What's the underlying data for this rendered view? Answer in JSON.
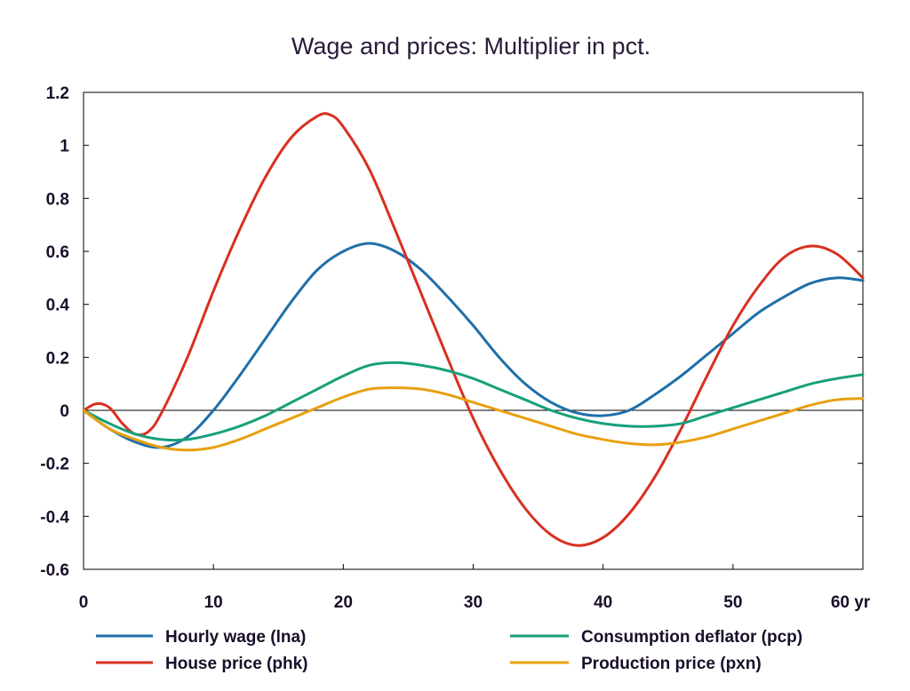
{
  "chart_data": {
    "type": "line",
    "title": "Wage and prices: Multiplier in pct.",
    "xlabel": "",
    "ylabel": "",
    "x_unit_label": "yr",
    "xlim": [
      0,
      60
    ],
    "ylim": [
      -0.6,
      1.2
    ],
    "x_ticks": [
      0,
      10,
      20,
      30,
      40,
      50,
      60
    ],
    "x_tick_labels": [
      "0",
      "10",
      "20",
      "30",
      "40",
      "50",
      "60 yr"
    ],
    "y_ticks": [
      -0.6,
      -0.4,
      -0.2,
      0,
      0.2,
      0.4,
      0.6,
      0.8,
      1,
      1.2
    ],
    "y_tick_labels": [
      "-0.6",
      "-0.4",
      "-0.2",
      "0",
      "0.2",
      "0.4",
      "0.6",
      "0.8",
      "1",
      "1.2"
    ],
    "grid": false,
    "legend_position": "bottom",
    "series": [
      {
        "name": "Hourly wage (lna)",
        "color": "#1f6fa8",
        "points": [
          [
            0,
            0
          ],
          [
            2,
            -0.07
          ],
          [
            4,
            -0.12
          ],
          [
            6,
            -0.14
          ],
          [
            8,
            -0.1
          ],
          [
            10,
            0.0
          ],
          [
            12,
            0.13
          ],
          [
            14,
            0.27
          ],
          [
            16,
            0.41
          ],
          [
            18,
            0.53
          ],
          [
            20,
            0.6
          ],
          [
            22,
            0.63
          ],
          [
            24,
            0.6
          ],
          [
            26,
            0.53
          ],
          [
            28,
            0.43
          ],
          [
            30,
            0.32
          ],
          [
            32,
            0.2
          ],
          [
            34,
            0.1
          ],
          [
            36,
            0.03
          ],
          [
            38,
            -0.01
          ],
          [
            40,
            -0.02
          ],
          [
            42,
            0.0
          ],
          [
            44,
            0.06
          ],
          [
            46,
            0.13
          ],
          [
            48,
            0.21
          ],
          [
            50,
            0.29
          ],
          [
            52,
            0.37
          ],
          [
            54,
            0.43
          ],
          [
            56,
            0.48
          ],
          [
            58,
            0.5
          ],
          [
            60,
            0.49
          ]
        ]
      },
      {
        "name": "House price (phk)",
        "color": "#d83020",
        "points": [
          [
            0,
            0
          ],
          [
            1,
            0.025
          ],
          [
            2,
            0.01
          ],
          [
            3,
            -0.05
          ],
          [
            4,
            -0.09
          ],
          [
            5,
            -0.08
          ],
          [
            6,
            -0.01
          ],
          [
            8,
            0.2
          ],
          [
            10,
            0.45
          ],
          [
            12,
            0.68
          ],
          [
            14,
            0.88
          ],
          [
            16,
            1.03
          ],
          [
            18,
            1.11
          ],
          [
            19,
            1.115
          ],
          [
            20,
            1.07
          ],
          [
            22,
            0.91
          ],
          [
            24,
            0.68
          ],
          [
            26,
            0.44
          ],
          [
            28,
            0.2
          ],
          [
            30,
            -0.03
          ],
          [
            32,
            -0.22
          ],
          [
            34,
            -0.37
          ],
          [
            36,
            -0.47
          ],
          [
            38,
            -0.51
          ],
          [
            40,
            -0.48
          ],
          [
            42,
            -0.39
          ],
          [
            44,
            -0.25
          ],
          [
            46,
            -0.07
          ],
          [
            48,
            0.13
          ],
          [
            50,
            0.32
          ],
          [
            52,
            0.47
          ],
          [
            54,
            0.58
          ],
          [
            56,
            0.62
          ],
          [
            58,
            0.59
          ],
          [
            60,
            0.5
          ]
        ]
      },
      {
        "name": "Consumption deflator (pcp)",
        "color": "#16a07a",
        "points": [
          [
            0,
            0
          ],
          [
            2,
            -0.05
          ],
          [
            4,
            -0.09
          ],
          [
            6,
            -0.11
          ],
          [
            8,
            -0.11
          ],
          [
            10,
            -0.09
          ],
          [
            12,
            -0.06
          ],
          [
            14,
            -0.02
          ],
          [
            16,
            0.03
          ],
          [
            18,
            0.08
          ],
          [
            20,
            0.13
          ],
          [
            22,
            0.17
          ],
          [
            24,
            0.18
          ],
          [
            26,
            0.17
          ],
          [
            28,
            0.15
          ],
          [
            30,
            0.12
          ],
          [
            32,
            0.08
          ],
          [
            34,
            0.04
          ],
          [
            36,
            0.0
          ],
          [
            38,
            -0.03
          ],
          [
            40,
            -0.05
          ],
          [
            42,
            -0.06
          ],
          [
            44,
            -0.06
          ],
          [
            46,
            -0.05
          ],
          [
            48,
            -0.02
          ],
          [
            50,
            0.01
          ],
          [
            52,
            0.04
          ],
          [
            54,
            0.07
          ],
          [
            56,
            0.1
          ],
          [
            58,
            0.12
          ],
          [
            60,
            0.135
          ]
        ]
      },
      {
        "name": "Production price (pxn)",
        "color": "#e8a010",
        "points": [
          [
            0,
            0
          ],
          [
            2,
            -0.07
          ],
          [
            4,
            -0.11
          ],
          [
            6,
            -0.14
          ],
          [
            8,
            -0.15
          ],
          [
            10,
            -0.14
          ],
          [
            12,
            -0.11
          ],
          [
            14,
            -0.07
          ],
          [
            16,
            -0.03
          ],
          [
            18,
            0.01
          ],
          [
            20,
            0.05
          ],
          [
            22,
            0.08
          ],
          [
            24,
            0.085
          ],
          [
            26,
            0.08
          ],
          [
            28,
            0.06
          ],
          [
            30,
            0.03
          ],
          [
            32,
            0.0
          ],
          [
            34,
            -0.03
          ],
          [
            36,
            -0.06
          ],
          [
            38,
            -0.09
          ],
          [
            40,
            -0.11
          ],
          [
            42,
            -0.125
          ],
          [
            44,
            -0.13
          ],
          [
            46,
            -0.12
          ],
          [
            48,
            -0.1
          ],
          [
            50,
            -0.07
          ],
          [
            52,
            -0.04
          ],
          [
            54,
            -0.01
          ],
          [
            56,
            0.02
          ],
          [
            58,
            0.04
          ],
          [
            60,
            0.045
          ]
        ]
      }
    ]
  }
}
